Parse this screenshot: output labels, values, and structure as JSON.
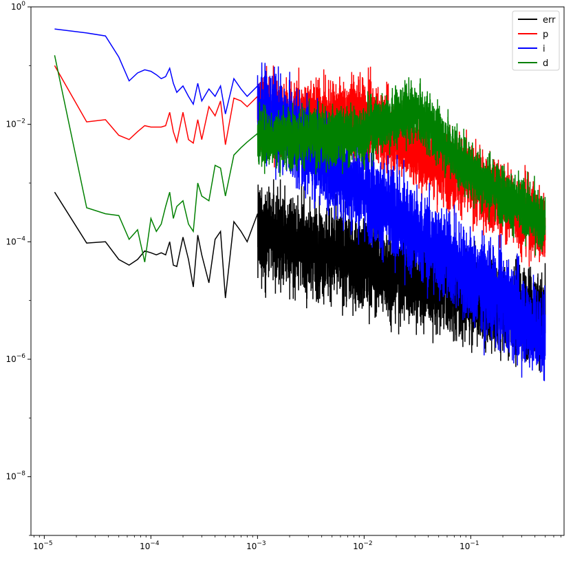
{
  "chart_data": {
    "type": "line",
    "title": "",
    "xlabel": "",
    "ylabel": "",
    "xscale": "log",
    "yscale": "log",
    "xlim": [
      7.5e-06,
      0.75
    ],
    "ylim": [
      1e-09,
      1.0
    ],
    "grid": false,
    "legend_location": "upper right",
    "x_ticks": [
      {
        "value": 1e-05,
        "base": "10",
        "exp": "−5"
      },
      {
        "value": 0.0001,
        "base": "10",
        "exp": "−4"
      },
      {
        "value": 0.001,
        "base": "10",
        "exp": "−3"
      },
      {
        "value": 0.01,
        "base": "10",
        "exp": "−2"
      },
      {
        "value": 0.1,
        "base": "10",
        "exp": "−1"
      }
    ],
    "y_ticks": [
      {
        "value": 1e-08,
        "base": "10",
        "exp": "−8"
      },
      {
        "value": 1e-06,
        "base": "10",
        "exp": "−6"
      },
      {
        "value": 0.0001,
        "base": "10",
        "exp": "−4"
      },
      {
        "value": 0.01,
        "base": "10",
        "exp": "−2"
      },
      {
        "value": 1.0,
        "base": "10",
        "exp": "0"
      }
    ],
    "series": [
      {
        "name": "err",
        "color": "#000000",
        "x": [
          1.25e-05,
          2.5e-05,
          3.75e-05,
          5e-05,
          6.25e-05,
          7.5e-05,
          8.75e-05,
          0.0001,
          0.0001125,
          0.000125,
          0.0001375,
          0.00015,
          0.0001625,
          0.000175,
          0.0002,
          0.000225,
          0.00025,
          0.000275,
          0.0003,
          0.00035,
          0.0004,
          0.00045,
          0.0005,
          0.0006,
          0.0007,
          0.0008,
          0.001
        ],
        "y": [
          0.0007,
          9.5e-05,
          0.0001,
          5e-05,
          4e-05,
          5e-05,
          7e-05,
          6.5e-05,
          6e-05,
          6.5e-05,
          6e-05,
          0.0001,
          4e-05,
          3.8e-05,
          0.00012,
          5e-05,
          1.7e-05,
          0.00013,
          6e-05,
          2e-05,
          0.00011,
          0.00015,
          1.1e-05,
          0.00022,
          0.00015,
          0.0001,
          0.0003
        ]
      },
      {
        "name": "p",
        "color": "#ff0000",
        "x": [
          1.25e-05,
          2.5e-05,
          3.75e-05,
          5e-05,
          6.25e-05,
          7.5e-05,
          8.75e-05,
          0.0001,
          0.0001125,
          0.000125,
          0.0001375,
          0.00015,
          0.0001625,
          0.000175,
          0.0002,
          0.000225,
          0.00025,
          0.000275,
          0.0003,
          0.00035,
          0.0004,
          0.00045,
          0.0005,
          0.0006,
          0.0007,
          0.0008,
          0.001
        ],
        "y": [
          0.1,
          0.011,
          0.012,
          0.0065,
          0.0055,
          0.0075,
          0.0095,
          0.009,
          0.009,
          0.009,
          0.0095,
          0.016,
          0.0075,
          0.005,
          0.016,
          0.0055,
          0.0048,
          0.012,
          0.0055,
          0.02,
          0.014,
          0.025,
          0.0045,
          0.028,
          0.025,
          0.02,
          0.03
        ]
      },
      {
        "name": "i",
        "color": "#0000ff",
        "x": [
          1.25e-05,
          2.5e-05,
          3.75e-05,
          5e-05,
          6.25e-05,
          7.5e-05,
          8.75e-05,
          0.0001,
          0.0001125,
          0.000125,
          0.0001375,
          0.00015,
          0.0001625,
          0.000175,
          0.0002,
          0.000225,
          0.00025,
          0.000275,
          0.0003,
          0.00035,
          0.0004,
          0.00045,
          0.0005,
          0.0006,
          0.0007,
          0.0008,
          0.001
        ],
        "y": [
          0.42,
          0.36,
          0.32,
          0.14,
          0.055,
          0.075,
          0.085,
          0.08,
          0.07,
          0.06,
          0.065,
          0.09,
          0.05,
          0.035,
          0.045,
          0.03,
          0.022,
          0.05,
          0.025,
          0.04,
          0.03,
          0.045,
          0.015,
          0.06,
          0.04,
          0.03,
          0.045
        ]
      },
      {
        "name": "d",
        "color": "#008000",
        "x": [
          1.25e-05,
          2.5e-05,
          3.75e-05,
          5e-05,
          6.25e-05,
          7.5e-05,
          8.75e-05,
          0.0001,
          0.0001125,
          0.000125,
          0.0001375,
          0.00015,
          0.0001625,
          0.000175,
          0.0002,
          0.000225,
          0.00025,
          0.000275,
          0.0003,
          0.00035,
          0.0004,
          0.00045,
          0.0005,
          0.0006,
          0.0007,
          0.0008,
          0.001
        ],
        "y": [
          0.15,
          0.00038,
          0.0003,
          0.00028,
          0.00011,
          0.00016,
          4.5e-05,
          0.00025,
          0.00015,
          0.0002,
          0.0004,
          0.0007,
          0.00025,
          0.0004,
          0.0005,
          0.0002,
          0.00015,
          0.001,
          0.0006,
          0.0005,
          0.002,
          0.0018,
          0.0006,
          0.003,
          0.004,
          0.005,
          0.007
        ]
      }
    ]
  }
}
